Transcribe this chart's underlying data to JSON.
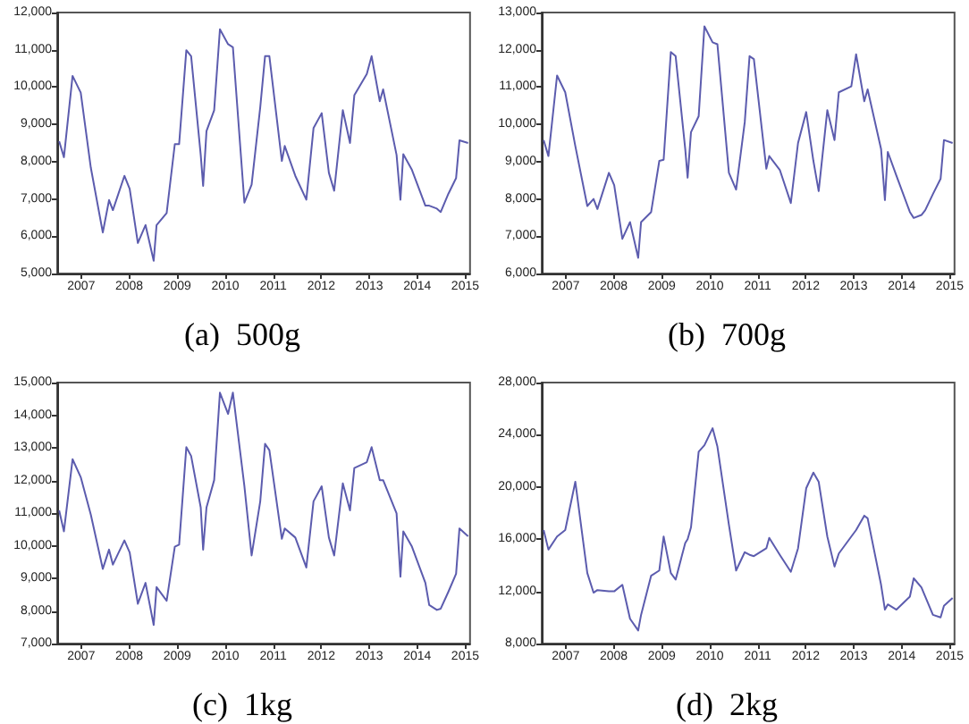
{
  "chart_data": [
    {
      "type": "line",
      "title": "(a)  500g",
      "color": "#5c5cae",
      "grid": false,
      "x": [
        2006.54,
        2006.64,
        2006.82,
        2006.99,
        2007.2,
        2007.45,
        2007.58,
        2007.66,
        2007.9,
        2008.01,
        2008.18,
        2008.34,
        2008.51,
        2008.57,
        2008.78,
        2008.95,
        2009.04,
        2009.19,
        2009.29,
        2009.49,
        2009.54,
        2009.61,
        2009.77,
        2009.89,
        2010.06,
        2010.16,
        2010.4,
        2010.55,
        2010.73,
        2010.83,
        2010.92,
        2011.18,
        2011.24,
        2011.46,
        2011.69,
        2011.84,
        2012.01,
        2012.16,
        2012.27,
        2012.45,
        2012.6,
        2012.69,
        2012.95,
        2013.05,
        2013.22,
        2013.29,
        2013.57,
        2013.65,
        2013.71,
        2013.89,
        2014.17,
        2014.25,
        2014.41,
        2014.49,
        2014.65,
        2014.81,
        2014.88,
        2015.06
      ],
      "values": [
        8550,
        8120,
        10300,
        9850,
        7840,
        6100,
        6970,
        6700,
        7620,
        7270,
        5820,
        6300,
        5340,
        6300,
        6620,
        8470,
        8470,
        10990,
        10830,
        8180,
        7350,
        8820,
        9380,
        11550,
        11150,
        11070,
        6900,
        7380,
        9460,
        10830,
        10830,
        8020,
        8420,
        7620,
        6980,
        8900,
        9300,
        7700,
        7220,
        9380,
        8500,
        9780,
        10350,
        10830,
        9620,
        9940,
        8180,
        6980,
        8200,
        7780,
        6820,
        6820,
        6740,
        6650,
        7140,
        7560,
        8570,
        8500
      ],
      "xlim": [
        2006.5,
        2015.1
      ],
      "xticks": [
        2007,
        2008,
        2009,
        2010,
        2011,
        2012,
        2013,
        2014,
        2015
      ],
      "ylim": [
        5000,
        12000
      ],
      "yticks": [
        {
          "value": 5000,
          "label": "5,000"
        },
        {
          "value": 6000,
          "label": "6,000"
        },
        {
          "value": 7000,
          "label": "7,000"
        },
        {
          "value": 8000,
          "label": "8,000"
        },
        {
          "value": 9000,
          "label": "9,000"
        },
        {
          "value": 10000,
          "label": "10,000"
        },
        {
          "value": 11000,
          "label": "11,000"
        },
        {
          "value": 12000,
          "label": "12,000"
        }
      ]
    },
    {
      "type": "line",
      "title": "(b)  700g",
      "color": "#5c5cae",
      "grid": false,
      "x": [
        2006.54,
        2006.64,
        2006.82,
        2006.99,
        2007.2,
        2007.45,
        2007.58,
        2007.66,
        2007.9,
        2008.01,
        2008.18,
        2008.34,
        2008.51,
        2008.57,
        2008.78,
        2008.95,
        2009.04,
        2009.19,
        2009.29,
        2009.49,
        2009.54,
        2009.61,
        2009.77,
        2009.89,
        2010.06,
        2010.16,
        2010.4,
        2010.55,
        2010.73,
        2010.83,
        2010.92,
        2011.18,
        2011.24,
        2011.46,
        2011.69,
        2011.84,
        2012.01,
        2012.16,
        2012.27,
        2012.45,
        2012.6,
        2012.69,
        2012.95,
        2013.05,
        2013.22,
        2013.29,
        2013.57,
        2013.65,
        2013.71,
        2013.89,
        2014.17,
        2014.25,
        2014.41,
        2014.49,
        2014.65,
        2014.81,
        2014.88,
        2015.06
      ],
      "values": [
        9580,
        9150,
        11310,
        10860,
        9420,
        7810,
        8000,
        7730,
        8700,
        8370,
        6930,
        7380,
        6420,
        7380,
        7650,
        9020,
        9050,
        11940,
        11830,
        9340,
        8570,
        9790,
        10220,
        12630,
        12200,
        12150,
        8700,
        8250,
        10060,
        11830,
        11750,
        8810,
        9150,
        8780,
        7890,
        9500,
        10330,
        9020,
        8210,
        10380,
        9580,
        10860,
        11020,
        11880,
        10620,
        10940,
        9340,
        7970,
        9260,
        8620,
        7650,
        7490,
        7570,
        7700,
        8130,
        8540,
        9580,
        9500
      ],
      "xlim": [
        2006.5,
        2015.1
      ],
      "xticks": [
        2007,
        2008,
        2009,
        2010,
        2011,
        2012,
        2013,
        2014,
        2015
      ],
      "ylim": [
        6000,
        13000
      ],
      "yticks": [
        {
          "value": 6000,
          "label": "6,000"
        },
        {
          "value": 7000,
          "label": "7,000"
        },
        {
          "value": 8000,
          "label": "8,000"
        },
        {
          "value": 9000,
          "label": "9,000"
        },
        {
          "value": 10000,
          "label": "10,000"
        },
        {
          "value": 11000,
          "label": "11,000"
        },
        {
          "value": 12000,
          "label": "12,000"
        },
        {
          "value": 13000,
          "label": "13,000"
        }
      ]
    },
    {
      "type": "line",
      "title": "(c)  1kg",
      "color": "#5c5cae",
      "grid": false,
      "x": [
        2006.54,
        2006.64,
        2006.82,
        2006.99,
        2007.2,
        2007.45,
        2007.58,
        2007.66,
        2007.9,
        2008.01,
        2008.18,
        2008.34,
        2008.51,
        2008.57,
        2008.78,
        2008.95,
        2009.04,
        2009.19,
        2009.29,
        2009.49,
        2009.54,
        2009.61,
        2009.77,
        2009.89,
        2010.06,
        2010.16,
        2010.4,
        2010.55,
        2010.73,
        2010.83,
        2010.92,
        2011.18,
        2011.24,
        2011.46,
        2011.69,
        2011.84,
        2012.01,
        2012.16,
        2012.27,
        2012.45,
        2012.6,
        2012.69,
        2012.95,
        2013.05,
        2013.22,
        2013.29,
        2013.57,
        2013.65,
        2013.71,
        2013.89,
        2014.17,
        2014.25,
        2014.41,
        2014.49,
        2014.65,
        2014.81,
        2014.88,
        2015.06
      ],
      "values": [
        11080,
        10440,
        12650,
        12100,
        10950,
        9290,
        9880,
        9420,
        10160,
        9790,
        8220,
        8860,
        7570,
        8730,
        8310,
        9970,
        10030,
        13020,
        12750,
        11170,
        9880,
        11170,
        12010,
        14690,
        14040,
        14690,
        11820,
        9700,
        11360,
        13120,
        12930,
        10210,
        10530,
        10250,
        9330,
        11360,
        11820,
        10250,
        9700,
        11910,
        11080,
        12380,
        12560,
        13020,
        12010,
        12010,
        10990,
        9050,
        10440,
        9970,
        8860,
        8180,
        8030,
        8070,
        8590,
        9140,
        10530,
        10290
      ],
      "xlim": [
        2006.5,
        2015.1
      ],
      "xticks": [
        2007,
        2008,
        2009,
        2010,
        2011,
        2012,
        2013,
        2014,
        2015
      ],
      "ylim": [
        7000,
        15000
      ],
      "yticks": [
        {
          "value": 7000,
          "label": "7,000"
        },
        {
          "value": 8000,
          "label": "8,000"
        },
        {
          "value": 9000,
          "label": "9,000"
        },
        {
          "value": 10000,
          "label": "10,000"
        },
        {
          "value": 11000,
          "label": "11,000"
        },
        {
          "value": 12000,
          "label": "12,000"
        },
        {
          "value": 13000,
          "label": "13,000"
        },
        {
          "value": 14000,
          "label": "14,000"
        },
        {
          "value": 15000,
          "label": "15,000"
        }
      ]
    },
    {
      "type": "line",
      "title": "(d)  2kg",
      "color": "#5c5cae",
      "grid": false,
      "x": [
        2006.54,
        2006.64,
        2006.82,
        2006.99,
        2007.2,
        2007.45,
        2007.58,
        2007.66,
        2007.9,
        2008.01,
        2008.18,
        2008.34,
        2008.51,
        2008.57,
        2008.78,
        2008.95,
        2009.04,
        2009.19,
        2009.29,
        2009.49,
        2009.54,
        2009.61,
        2009.77,
        2009.89,
        2010.06,
        2010.16,
        2010.4,
        2010.55,
        2010.73,
        2010.83,
        2010.92,
        2011.18,
        2011.24,
        2011.46,
        2011.69,
        2011.84,
        2012.01,
        2012.16,
        2012.27,
        2012.45,
        2012.6,
        2012.69,
        2012.95,
        2013.05,
        2013.22,
        2013.29,
        2013.57,
        2013.65,
        2013.71,
        2013.89,
        2014.17,
        2014.25,
        2014.41,
        2014.49,
        2014.65,
        2014.81,
        2014.88,
        2015.06
      ],
      "values": [
        16700,
        15200,
        16200,
        16700,
        20400,
        13400,
        11900,
        12100,
        12000,
        12000,
        12500,
        9900,
        9000,
        10200,
        13200,
        13600,
        16200,
        13400,
        12900,
        15700,
        16000,
        16900,
        22700,
        23200,
        24500,
        23100,
        17100,
        13600,
        15000,
        14800,
        14700,
        15300,
        16100,
        14800,
        13500,
        15300,
        19900,
        21100,
        20400,
        16200,
        13900,
        14900,
        16200,
        16700,
        17800,
        17600,
        12500,
        10600,
        11000,
        10600,
        11600,
        13000,
        12300,
        11600,
        10200,
        10000,
        10900,
        11500
      ],
      "xlim": [
        2006.5,
        2015.1
      ],
      "xticks": [
        2007,
        2008,
        2009,
        2010,
        2011,
        2012,
        2013,
        2014,
        2015
      ],
      "ylim": [
        8000,
        28000
      ],
      "yticks": [
        {
          "value": 8000,
          "label": "8,000"
        },
        {
          "value": 12000,
          "label": "12,000"
        },
        {
          "value": 16000,
          "label": "16,000"
        },
        {
          "value": 20000,
          "label": "20,000"
        },
        {
          "value": 24000,
          "label": "24,000"
        },
        {
          "value": 28000,
          "label": "28,000"
        }
      ]
    }
  ]
}
